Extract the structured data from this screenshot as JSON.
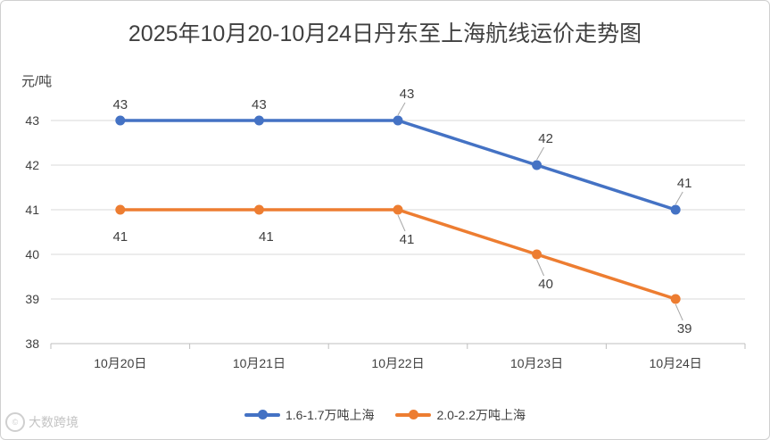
{
  "chart_data": {
    "type": "line",
    "title": "2025年10月20-10月24日丹东至上海航线运价走势图",
    "ylabel": "元/吨",
    "categories": [
      "10月20日",
      "10月21日",
      "10月22日",
      "10月23日",
      "10月24日"
    ],
    "series": [
      {
        "name": "1.6-1.7万吨上海",
        "values": [
          43,
          43,
          43,
          42,
          41
        ],
        "color": "#4472C4",
        "label_position": "above"
      },
      {
        "name": "2.0-2.2万吨上海",
        "values": [
          41,
          41,
          41,
          40,
          39
        ],
        "color": "#ED7D31",
        "label_position": "below"
      }
    ],
    "ylim": [
      38,
      43
    ],
    "yticks": [
      38,
      39,
      40,
      41,
      42,
      43
    ],
    "grid": true,
    "legend": "bottom"
  },
  "watermark": {
    "icon": "logo-icon",
    "text": "大数跨境"
  }
}
